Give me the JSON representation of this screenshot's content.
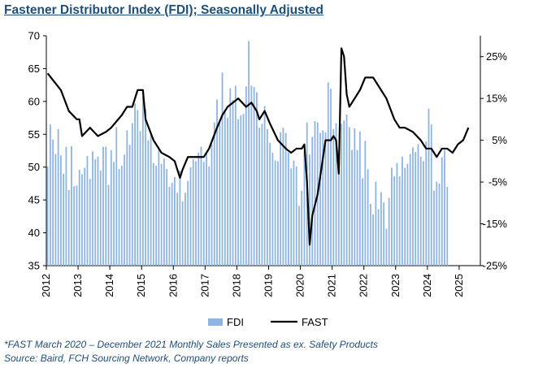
{
  "title": "Fastener Distributor Index (FDI); Seasonally Adjusted",
  "footnotes": [
    "*FAST March 2020 – December 2021 Monthly Sales Presented as ex. Safety Products",
    "Source: Baird, FCH Sourcing Network, Company reports"
  ],
  "chart_data": {
    "type": "bar+line",
    "x_ticks": [
      "2012",
      "2013",
      "2014",
      "2015",
      "2016",
      "2017",
      "2018",
      "2019",
      "2020",
      "2021",
      "2022",
      "2023",
      "2024",
      "2025"
    ],
    "y_left": {
      "lim": [
        35,
        70
      ],
      "ticks": [
        "35",
        "40",
        "45",
        "50",
        "55",
        "60",
        "65",
        "70"
      ]
    },
    "y_right": {
      "lim": [
        -25,
        30
      ],
      "ticks": [
        "-25%",
        "-15%",
        "-5%",
        "5%",
        "15%",
        "25%"
      ]
    },
    "legend": {
      "position": "bottom",
      "entries": [
        "FDI",
        "FAST"
      ]
    },
    "colors": {
      "bar": "#8eb4e3",
      "line": "#000000",
      "title": "#1f4e79"
    },
    "series": [
      {
        "name": "FDI",
        "kind": "bar",
        "axis": "left",
        "start": "2012-01",
        "values": [
          50.1,
          56.5,
          54.2,
          52.0,
          55.8,
          51.8,
          49.0,
          53.1,
          46.5,
          53.2,
          47.1,
          47.2,
          49.6,
          48.9,
          49.9,
          51.7,
          48.2,
          52.4,
          51.2,
          51.6,
          49.5,
          53.1,
          53.1,
          47.3,
          52.6,
          50.8,
          56.1,
          49.7,
          50.2,
          51.9,
          55.6,
          53.4,
          56.7,
          59.7,
          58.7,
          55.5,
          60.8,
          58.9,
          54.1,
          55.2,
          50.6,
          50.2,
          53.1,
          50.5,
          51.3,
          49.7,
          47.0,
          47.6,
          48.5,
          46.1,
          49.5,
          44.8,
          46.1,
          47.9,
          50.0,
          51.2,
          50.9,
          52.2,
          53.1,
          50.8,
          52.1,
          50.1,
          53.5,
          56.8,
          60.3,
          56.9,
          64.4,
          58.5,
          57.5,
          62.0,
          60.2,
          62.4,
          57.3,
          57.9,
          58.1,
          62.3,
          69.2,
          62.4,
          62.2,
          61.4,
          56.0,
          56.6,
          59.3,
          55.8,
          53.7,
          52.2,
          51.0,
          50.9,
          55.3,
          56.0,
          55.2,
          52.2,
          49.8,
          51.0,
          50.1,
          44.1,
          46.4,
          52.4,
          56.8,
          51.9,
          54.6,
          57.0,
          56.8,
          55.2,
          55.6,
          55.3,
          62.9,
          61.9,
          55.8,
          56.7,
          52.5,
          56.6,
          57.1,
          58.0,
          56.1,
          52.6,
          55.9,
          52.6,
          55.4,
          48.3,
          54.0,
          49.7,
          44.4,
          42.8,
          47.8,
          43.6,
          46.2,
          44.6,
          40.6,
          45.3,
          49.9,
          48.6,
          50.6,
          48.6,
          51.6,
          49.9,
          50.5,
          52.0,
          53.0,
          52.3,
          53.5,
          51.6,
          50.9,
          53.9,
          58.9,
          56.5,
          46.4,
          47.8,
          47.5,
          51.5,
          52.6,
          47.0
        ]
      },
      {
        "name": "FAST",
        "kind": "line",
        "axis": "right",
        "points": [
          [
            "2012-01",
            21
          ],
          [
            "2012-06",
            17
          ],
          [
            "2012-09",
            12
          ],
          [
            "2012-12",
            10
          ],
          [
            "2013-01",
            10
          ],
          [
            "2013-02",
            6
          ],
          [
            "2013-05",
            8
          ],
          [
            "2013-08",
            6
          ],
          [
            "2013-11",
            7
          ],
          [
            "2014-01",
            8
          ],
          [
            "2014-05",
            11
          ],
          [
            "2014-07",
            13
          ],
          [
            "2014-09",
            13
          ],
          [
            "2014-11",
            17
          ],
          [
            "2015-01",
            17
          ],
          [
            "2015-02",
            10
          ],
          [
            "2015-05",
            5
          ],
          [
            "2015-08",
            2
          ],
          [
            "2015-11",
            1
          ],
          [
            "2016-01",
            0
          ],
          [
            "2016-03",
            -4
          ],
          [
            "2016-04",
            -2
          ],
          [
            "2016-06",
            1
          ],
          [
            "2016-09",
            1
          ],
          [
            "2016-12",
            1
          ],
          [
            "2017-02",
            3
          ],
          [
            "2017-05",
            8
          ],
          [
            "2017-07",
            11
          ],
          [
            "2017-09",
            13
          ],
          [
            "2017-11",
            14
          ],
          [
            "2018-01",
            15
          ],
          [
            "2018-04",
            13
          ],
          [
            "2018-06",
            14
          ],
          [
            "2018-08",
            12
          ],
          [
            "2018-09",
            10
          ],
          [
            "2018-11",
            12
          ],
          [
            "2019-01",
            9
          ],
          [
            "2019-04",
            5
          ],
          [
            "2019-07",
            3
          ],
          [
            "2019-09",
            2
          ],
          [
            "2019-11",
            3
          ],
          [
            "2020-01",
            3
          ],
          [
            "2020-02",
            4
          ],
          [
            "2020-03",
            -5
          ],
          [
            "2020-04",
            -20
          ],
          [
            "2020-05",
            -13
          ],
          [
            "2020-07",
            -8
          ],
          [
            "2020-10",
            5
          ],
          [
            "2020-12",
            5
          ],
          [
            "2021-01",
            6
          ],
          [
            "2021-02",
            5
          ],
          [
            "2021-03",
            -3
          ],
          [
            "2021-04",
            27
          ],
          [
            "2021-05",
            25
          ],
          [
            "2021-06",
            16
          ],
          [
            "2021-07",
            13
          ],
          [
            "2021-09",
            15
          ],
          [
            "2021-11",
            17
          ],
          [
            "2022-01",
            20
          ],
          [
            "2022-04",
            20
          ],
          [
            "2022-06",
            18
          ],
          [
            "2022-09",
            15
          ],
          [
            "2022-12",
            10
          ],
          [
            "2023-02",
            8
          ],
          [
            "2023-04",
            8
          ],
          [
            "2023-07",
            7
          ],
          [
            "2023-10",
            5
          ],
          [
            "2023-12",
            3
          ],
          [
            "2024-02",
            3
          ],
          [
            "2024-04",
            1
          ],
          [
            "2024-06",
            3
          ],
          [
            "2024-08",
            3
          ],
          [
            "2024-10",
            2
          ],
          [
            "2024-12",
            4
          ],
          [
            "2025-02",
            5
          ],
          [
            "2025-04",
            8
          ]
        ]
      }
    ]
  }
}
